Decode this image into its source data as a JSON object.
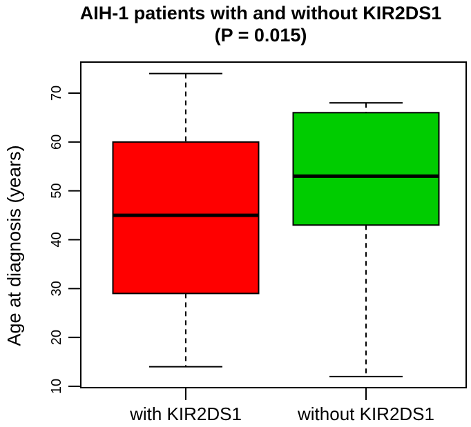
{
  "chart_data": {
    "type": "boxplot",
    "title": "AIH-1 patients with and without KIR2DS1",
    "subtitle": "(P = 0.015)",
    "ylabel": "Age at diagnosis (years)",
    "ylim": [
      10,
      74
    ],
    "yticks": [
      10,
      20,
      30,
      40,
      50,
      60,
      70
    ],
    "categories": [
      "with KIR2DS1",
      "without KIR2DS1"
    ],
    "series": [
      {
        "name": "with KIR2DS1",
        "color": "#FF0000",
        "min": 14,
        "q1": 29,
        "median": 45,
        "q3": 60,
        "max": 74
      },
      {
        "name": "without KIR2DS1",
        "color": "#00CC00",
        "min": 12,
        "q1": 43,
        "median": 53,
        "q3": 66,
        "max": 68
      }
    ],
    "colors": {
      "box1": "#FF0000",
      "box2": "#00CC00",
      "stroke": "#000000",
      "background": "#FFFFFF"
    },
    "grid": false,
    "legend": "none"
  }
}
